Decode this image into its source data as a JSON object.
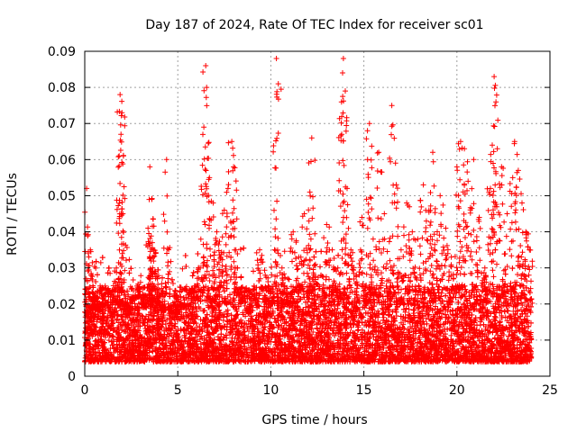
{
  "chart_data": {
    "type": "scatter",
    "title": "Day 187 of 2024, Rate Of TEC Index for receiver sc01",
    "xlabel": "GPS time / hours",
    "ylabel": "ROTI / TECUs",
    "xlim": [
      0,
      25
    ],
    "ylim": [
      0,
      0.09
    ],
    "xticks": [
      "0",
      "5",
      "10",
      "15",
      "20",
      "25"
    ],
    "yticks": [
      "0",
      "0.01",
      "0.02",
      "0.03",
      "0.04",
      "0.05",
      "0.06",
      "0.07",
      "0.08",
      "0.09"
    ],
    "grid": true,
    "marker": "+",
    "color": "#ff0000",
    "series": [
      {
        "name": "ROTI",
        "x": [
          0.05,
          0.1,
          0.2,
          0.3,
          0.4,
          0.55,
          0.7,
          0.9,
          1.1,
          1.3,
          1.5,
          1.7,
          1.85,
          1.9,
          1.95,
          2.0,
          2.05,
          2.1,
          2.2,
          2.4,
          2.6,
          2.8,
          3.0,
          3.2,
          3.4,
          3.5,
          3.6,
          3.7,
          3.8,
          3.9,
          4.0,
          4.2,
          4.4,
          4.6,
          4.8,
          5.0,
          5.3,
          5.6,
          5.9,
          6.2,
          6.4,
          6.5,
          6.55,
          6.7,
          6.9,
          7.1,
          7.3,
          7.5,
          7.7,
          7.9,
          8.0,
          8.2,
          8.5,
          8.8,
          9.1,
          9.4,
          9.7,
          10.0,
          10.2,
          10.3,
          10.4,
          10.6,
          10.9,
          11.2,
          11.5,
          11.8,
          12.1,
          12.2,
          12.4,
          12.7,
          13.0,
          13.3,
          13.6,
          13.8,
          13.9,
          14.0,
          14.1,
          14.3,
          14.6,
          14.9,
          15.2,
          15.3,
          15.5,
          15.8,
          16.1,
          16.4,
          16.5,
          16.7,
          17.0,
          17.3,
          17.6,
          17.9,
          18.2,
          18.5,
          18.7,
          18.8,
          19.1,
          19.4,
          19.7,
          20.0,
          20.2,
          20.4,
          20.6,
          20.9,
          21.2,
          21.5,
          21.8,
          21.9,
          22.0,
          22.1,
          22.4,
          22.7,
          23.0,
          23.1,
          23.3,
          23.5,
          23.7,
          23.9
        ],
        "y": [
          0.012,
          0.052,
          0.015,
          0.035,
          0.011,
          0.022,
          0.018,
          0.013,
          0.025,
          0.014,
          0.016,
          0.03,
          0.061,
          0.078,
          0.067,
          0.073,
          0.045,
          0.02,
          0.014,
          0.017,
          0.022,
          0.012,
          0.026,
          0.019,
          0.041,
          0.058,
          0.049,
          0.035,
          0.029,
          0.021,
          0.015,
          0.018,
          0.06,
          0.013,
          0.016,
          0.011,
          0.019,
          0.014,
          0.025,
          0.03,
          0.069,
          0.086,
          0.08,
          0.055,
          0.048,
          0.04,
          0.033,
          0.046,
          0.052,
          0.065,
          0.058,
          0.03,
          0.022,
          0.018,
          0.025,
          0.035,
          0.028,
          0.02,
          0.035,
          0.088,
          0.081,
          0.03,
          0.022,
          0.04,
          0.033,
          0.045,
          0.051,
          0.066,
          0.031,
          0.028,
          0.042,
          0.035,
          0.03,
          0.076,
          0.088,
          0.079,
          0.052,
          0.035,
          0.028,
          0.044,
          0.06,
          0.07,
          0.038,
          0.062,
          0.045,
          0.032,
          0.075,
          0.059,
          0.035,
          0.048,
          0.04,
          0.038,
          0.053,
          0.046,
          0.062,
          0.035,
          0.05,
          0.041,
          0.033,
          0.058,
          0.065,
          0.063,
          0.054,
          0.06,
          0.044,
          0.03,
          0.052,
          0.064,
          0.083,
          0.076,
          0.058,
          0.045,
          0.055,
          0.065,
          0.057,
          0.048,
          0.04,
          0.035
        ],
        "baseline_band": [
          0.004,
          0.025
        ],
        "baseline_density_per_hour": 420
      }
    ]
  }
}
